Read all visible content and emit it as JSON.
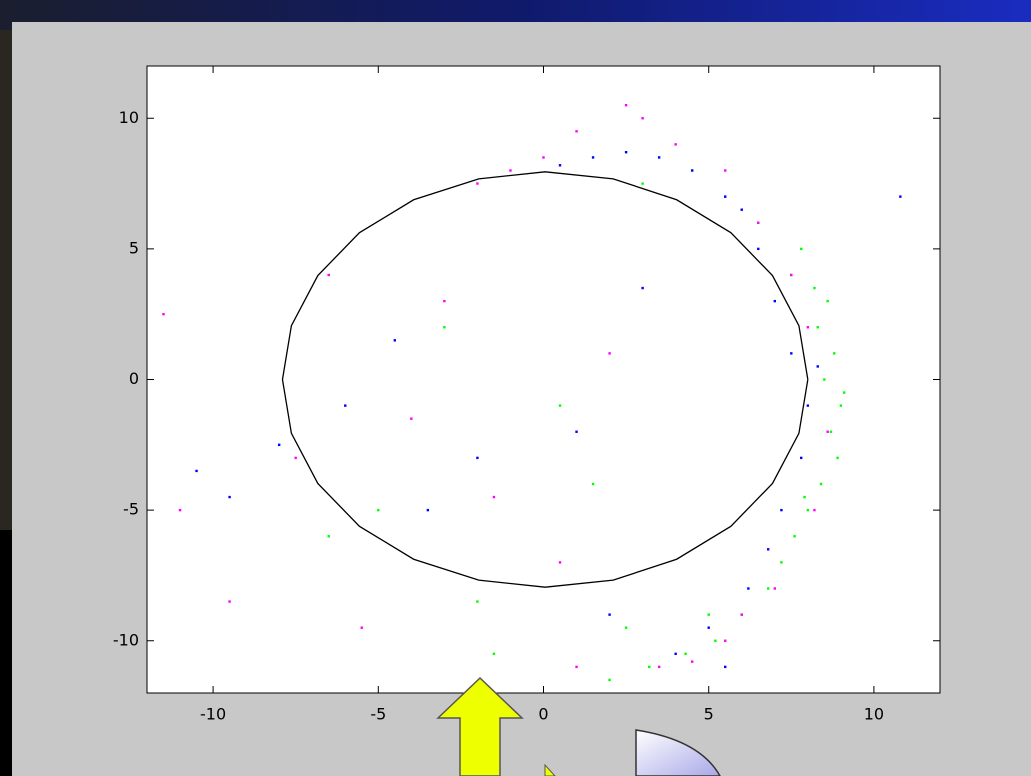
{
  "chart_data": {
    "type": "scatter",
    "xlim": [
      -12,
      12
    ],
    "ylim": [
      -12,
      12
    ],
    "xticks": [
      -10,
      -5,
      0,
      5,
      10
    ],
    "yticks": [
      -10,
      -5,
      0,
      5,
      10
    ],
    "series": [
      {
        "color": "#00ff00",
        "x": [
          8.5,
          8.8,
          9.0,
          8.7,
          8.9,
          8.3,
          8.6,
          9.1,
          8.4,
          8.0,
          7.6,
          7.9,
          7.2,
          6.8,
          6.0,
          5.2,
          4.3,
          3.2,
          2.0,
          7.5,
          6.5,
          5.5,
          4.5,
          8.2,
          7.8,
          -1.5,
          -3.0,
          1.5,
          -5.0,
          0.5,
          3.0,
          -6.5,
          -2.0,
          2.5,
          5.0
        ],
        "y": [
          0,
          1,
          -1,
          -2,
          -3,
          2,
          3,
          -0.5,
          -4,
          -5,
          -6,
          -4.5,
          -7,
          -8,
          -9,
          -10,
          -10.5,
          -11,
          -11.5,
          4,
          6,
          7,
          8,
          3.5,
          5,
          -10.5,
          2,
          -4,
          -5,
          -1,
          7.5,
          -6,
          -8.5,
          -9.5,
          -9
        ]
      },
      {
        "color": "#0000ff",
        "x": [
          7.0,
          7.5,
          6.5,
          6.0,
          5.5,
          4.5,
          3.5,
          2.5,
          1.5,
          0.5,
          8.0,
          8.3,
          7.8,
          7.2,
          6.8,
          6.2,
          5.0,
          4.0,
          -9.5,
          -10.5,
          -8.0,
          -3.5,
          -2.0,
          1.0,
          3.0,
          -4.5,
          -6.0,
          10.8,
          2.0,
          5.5
        ],
        "y": [
          3,
          1,
          5,
          6.5,
          7,
          8,
          8.5,
          8.7,
          8.5,
          8.2,
          -1,
          0.5,
          -3,
          -5,
          -6.5,
          -8,
          -9.5,
          -10.5,
          -4.5,
          -3.5,
          -2.5,
          -5,
          -3,
          -2,
          3.5,
          1.5,
          -1,
          7,
          -9,
          -11
        ]
      },
      {
        "color": "#ff00ff",
        "x": [
          -1.0,
          -2.0,
          0.0,
          1.0,
          2.5,
          4.0,
          5.5,
          6.5,
          7.5,
          8.0,
          8.6,
          8.2,
          7.0,
          5.5,
          3.5,
          -11.5,
          -11.0,
          -6.5,
          -4.0,
          -3.0,
          -1.5,
          0.5,
          2.0,
          -5.5,
          -7.5,
          3.0,
          4.5,
          6.0,
          -9.5,
          1.0
        ],
        "y": [
          8.0,
          7.5,
          8.5,
          9.5,
          10.5,
          9.0,
          8.0,
          6.0,
          4.0,
          2.0,
          -2,
          -5,
          -8,
          -10,
          -11,
          2.5,
          -5,
          4,
          -1.5,
          3,
          -4.5,
          -7,
          1,
          -9.5,
          -3,
          10,
          -10.8,
          -9,
          -8.5,
          -11
        ]
      },
      {
        "type": "line",
        "color": "#000000",
        "x": [
          8.0,
          7.73,
          6.93,
          5.67,
          4.03,
          2.11,
          0.05,
          -1.96,
          -3.93,
          -5.57,
          -6.83,
          -7.63,
          -7.9,
          -7.63,
          -6.83,
          -5.57,
          -3.93,
          -1.96,
          0.05,
          2.11,
          4.03,
          5.67,
          6.93,
          7.73,
          8.0
        ],
        "y": [
          0,
          2.06,
          3.98,
          5.62,
          6.88,
          7.68,
          7.95,
          7.68,
          6.88,
          5.62,
          3.98,
          2.06,
          0,
          -2.06,
          -3.98,
          -5.62,
          -6.88,
          -7.68,
          -7.95,
          -7.68,
          -6.88,
          -5.62,
          -3.98,
          -2.06,
          0
        ]
      }
    ]
  }
}
